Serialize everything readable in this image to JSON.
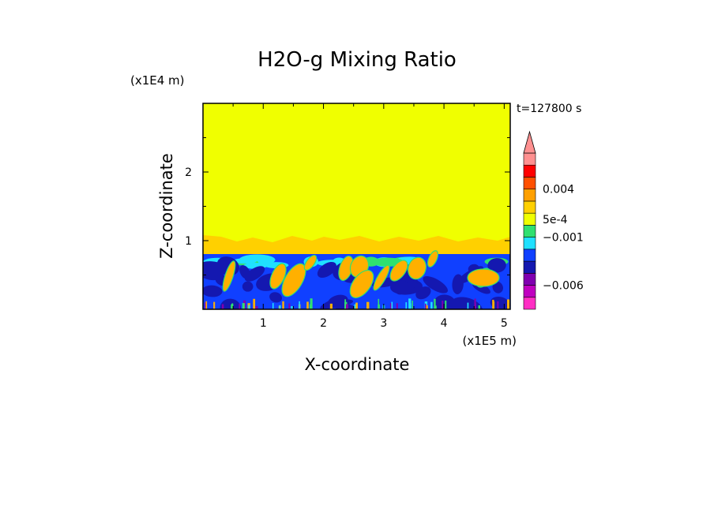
{
  "chart_data": {
    "type": "heatmap",
    "title": "H2O-g Mixing Ratio",
    "xlabel": "X-coordinate",
    "ylabel": "Z-coordinate",
    "x_unit": "(x1E5 m)",
    "y_unit": "(x1E4 m)",
    "time_label": "t=127800 s",
    "xlim": [
      0,
      5.1
    ],
    "ylim": [
      0,
      3.0
    ],
    "x_ticks": [
      1,
      2,
      3,
      4,
      5
    ],
    "x_tick_labels": [
      "1",
      "2",
      "3",
      "4",
      "5"
    ],
    "y_ticks": [
      1,
      2
    ],
    "y_tick_labels": [
      "1",
      "2"
    ],
    "colorbar": {
      "colors": [
        "#ff2ec4",
        "#c000c0",
        "#8000b0",
        "#1418b0",
        "#1040ff",
        "#20e0ff",
        "#30e070",
        "#f0ff00",
        "#ffd000",
        "#ffa000",
        "#ff5000",
        "#ff0000",
        "#ff9090"
      ],
      "labels": [
        {
          "text": "0.004",
          "after_band": 10
        },
        {
          "text": "5e-4",
          "after_band": 7.5
        },
        {
          "text": "−0.001",
          "after_band": 6
        },
        {
          "text": "−0.006",
          "after_band": 2
        }
      ]
    },
    "regions": [
      {
        "name": "upper-layer",
        "z_range": [
          1.0,
          3.0
        ],
        "color": "#f0ff00"
      },
      {
        "name": "transition-layer",
        "z_range": [
          0.82,
          1.0
        ],
        "color": "#ffd000"
      },
      {
        "name": "lower-layer",
        "z_range": [
          0,
          0.82
        ],
        "color": "#1040ff"
      }
    ]
  },
  "colors": {
    "yellow": "#f0ff00",
    "orange": "#ffb000",
    "blue": "#1040ff",
    "darkblue": "#1418b0",
    "cyan": "#20e0ff",
    "green": "#30e070",
    "purple": "#8000b0"
  }
}
